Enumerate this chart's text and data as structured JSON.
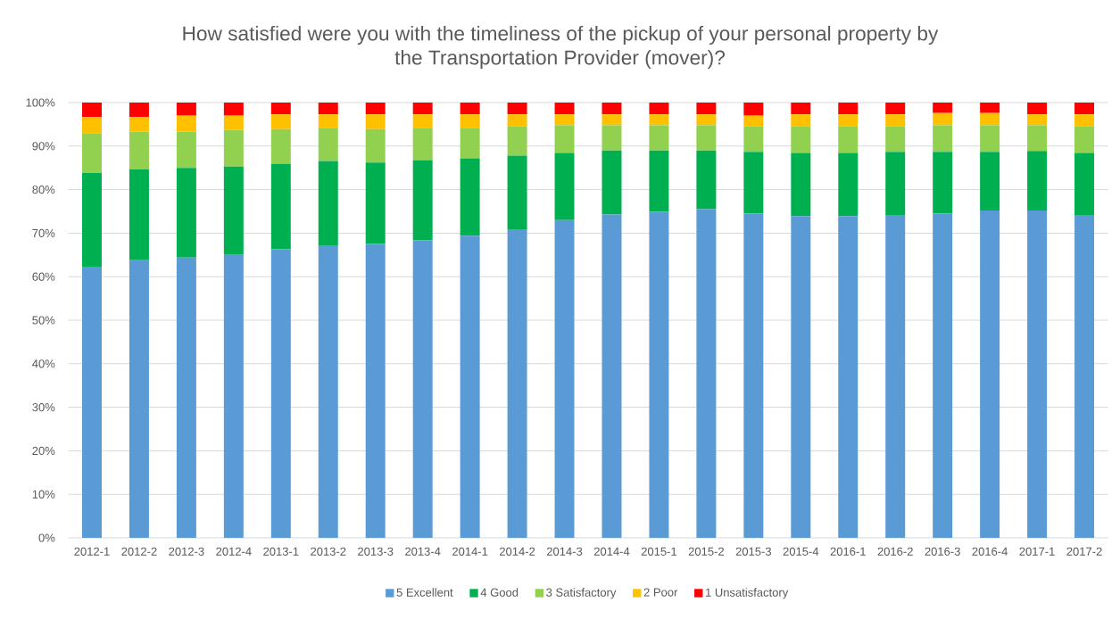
{
  "chart_data": {
    "type": "bar",
    "stacked": true,
    "title": "How satisfied were you with the timeliness of the pickup of your personal property by the Transportation Provider (mover)?",
    "categories": [
      "2012-1",
      "2012-2",
      "2012-3",
      "2012-4",
      "2013-1",
      "2013-2",
      "2013-3",
      "2013-4",
      "2014-1",
      "2014-2",
      "2014-3",
      "2014-4",
      "2015-1",
      "2015-2",
      "2015-3",
      "2015-4",
      "2016-1",
      "2016-2",
      "2016-3",
      "2016-4",
      "2017-1",
      "2017-2"
    ],
    "series": [
      {
        "name": "5 Excellent",
        "color": "#5b9bd5",
        "values": [
          62.3,
          63.8,
          64.4,
          65.0,
          66.3,
          67.2,
          67.5,
          68.4,
          69.4,
          70.9,
          73.0,
          74.3,
          74.9,
          75.5,
          74.5,
          73.9,
          73.9,
          74.2,
          74.5,
          75.2,
          75.2,
          74.2
        ]
      },
      {
        "name": "4 Good",
        "color": "#00b050",
        "values": [
          21.5,
          20.9,
          20.6,
          20.3,
          19.6,
          19.4,
          18.7,
          18.4,
          17.8,
          16.9,
          15.4,
          14.7,
          14.1,
          13.5,
          14.2,
          14.5,
          14.5,
          14.5,
          14.2,
          13.5,
          13.7,
          14.2
        ]
      },
      {
        "name": "3 Satisfactory",
        "color": "#92d050",
        "values": [
          9.2,
          8.6,
          8.3,
          8.4,
          8.0,
          7.6,
          7.7,
          7.4,
          7.0,
          6.7,
          6.4,
          5.8,
          5.8,
          5.8,
          5.8,
          6.1,
          6.1,
          5.8,
          6.1,
          6.1,
          5.9,
          6.1
        ]
      },
      {
        "name": "2 Poor",
        "color": "#ffc000",
        "values": [
          3.7,
          3.4,
          3.7,
          3.3,
          3.4,
          3.1,
          3.4,
          3.1,
          3.1,
          2.8,
          2.5,
          2.5,
          2.5,
          2.5,
          2.5,
          2.8,
          2.8,
          2.8,
          2.8,
          2.8,
          2.5,
          2.8
        ]
      },
      {
        "name": "1 Unsatisfactory",
        "color": "#ff0000",
        "values": [
          3.3,
          3.3,
          3.0,
          3.0,
          2.7,
          2.7,
          2.7,
          2.7,
          2.7,
          2.7,
          2.7,
          2.7,
          2.7,
          2.7,
          3.0,
          2.7,
          2.7,
          2.7,
          2.4,
          2.4,
          2.7,
          2.7
        ]
      }
    ],
    "ylim": [
      0,
      100
    ],
    "yticks": [
      {
        "value": 0,
        "label": "0%"
      },
      {
        "value": 10,
        "label": "10%"
      },
      {
        "value": 20,
        "label": "20%"
      },
      {
        "value": 30,
        "label": "30%"
      },
      {
        "value": 40,
        "label": "40%"
      },
      {
        "value": 50,
        "label": "50%"
      },
      {
        "value": 60,
        "label": "60%"
      },
      {
        "value": 70,
        "label": "70%"
      },
      {
        "value": 80,
        "label": "80%"
      },
      {
        "value": 90,
        "label": "90%"
      },
      {
        "value": 100,
        "label": "100%"
      }
    ],
    "grid": "y",
    "legend": "bottom"
  }
}
